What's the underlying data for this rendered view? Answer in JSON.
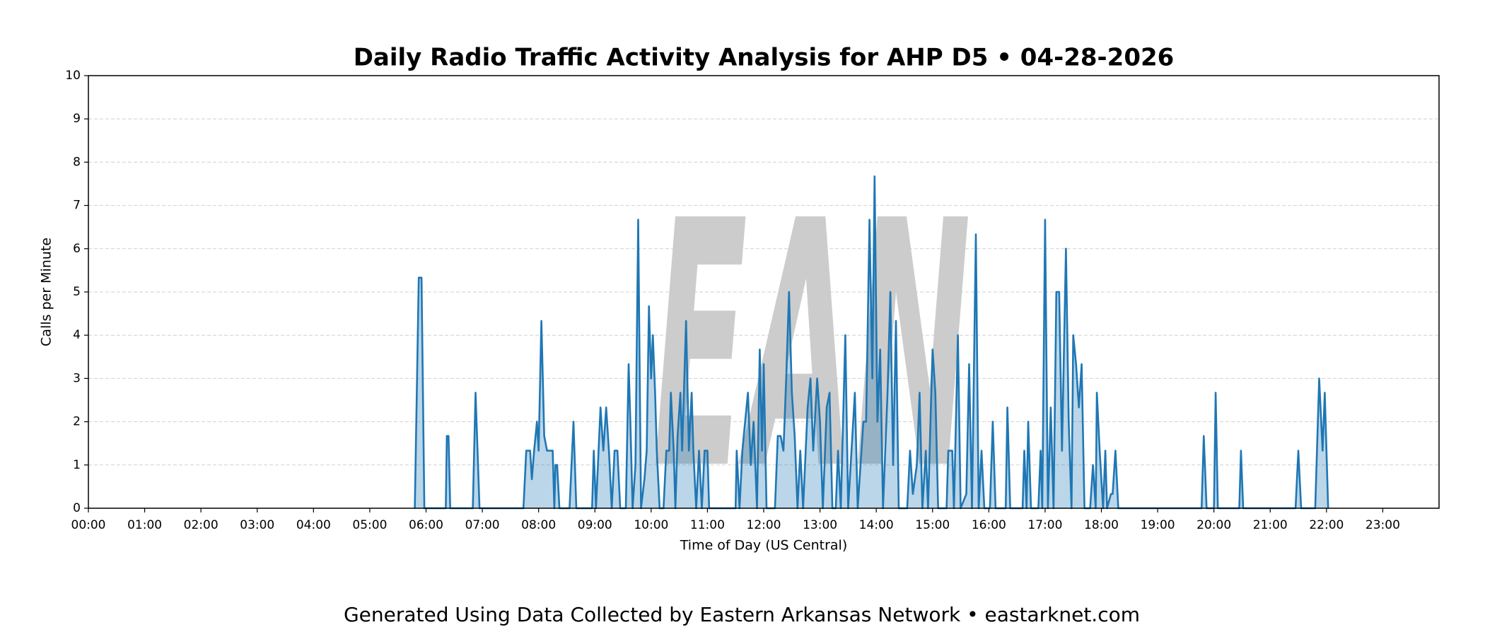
{
  "chart_data": {
    "type": "area",
    "title": "Daily Radio Traffic Activity Analysis for AHP D5 • 04-28-2026",
    "xlabel": "Time of Day (US Central)",
    "ylabel": "Calls per Minute",
    "watermark": "EAN",
    "footer": "Generated Using Data Collected by Eastern Arkansas Network • eastarknet.com",
    "color": "#1f77b4",
    "grid": true,
    "xlim": [
      0,
      24
    ],
    "ylim": [
      0,
      10
    ],
    "yticks": [
      0,
      1,
      2,
      3,
      4,
      5,
      6,
      7,
      8,
      9,
      10
    ],
    "xticks": [
      {
        "value": 0,
        "label": "00:00"
      },
      {
        "value": 1,
        "label": "01:00"
      },
      {
        "value": 2,
        "label": "02:00"
      },
      {
        "value": 3,
        "label": "03:00"
      },
      {
        "value": 4,
        "label": "04:00"
      },
      {
        "value": 5,
        "label": "05:00"
      },
      {
        "value": 6,
        "label": "06:00"
      },
      {
        "value": 7,
        "label": "07:00"
      },
      {
        "value": 8,
        "label": "08:00"
      },
      {
        "value": 9,
        "label": "09:00"
      },
      {
        "value": 10,
        "label": "10:00"
      },
      {
        "value": 11,
        "label": "11:00"
      },
      {
        "value": 12,
        "label": "12:00"
      },
      {
        "value": 13,
        "label": "13:00"
      },
      {
        "value": 14,
        "label": "14:00"
      },
      {
        "value": 15,
        "label": "15:00"
      },
      {
        "value": 16,
        "label": "16:00"
      },
      {
        "value": 17,
        "label": "17:00"
      },
      {
        "value": 18,
        "label": "18:00"
      },
      {
        "value": 19,
        "label": "19:00"
      },
      {
        "value": 20,
        "label": "20:00"
      },
      {
        "value": 21,
        "label": "21:00"
      },
      {
        "value": 22,
        "label": "22:00"
      },
      {
        "value": 23,
        "label": "23:00"
      }
    ],
    "x": [
      5.8,
      5.87,
      5.92,
      5.97,
      6.35,
      6.37,
      6.4,
      6.43,
      6.83,
      6.88,
      6.95,
      7.73,
      7.78,
      7.85,
      7.88,
      7.92,
      7.97,
      8.0,
      8.05,
      8.1,
      8.15,
      8.25,
      8.28,
      8.3,
      8.33,
      8.37,
      8.55,
      8.62,
      8.67,
      8.95,
      8.98,
      9.02,
      9.1,
      9.15,
      9.2,
      9.25,
      9.3,
      9.35,
      9.4,
      9.45,
      9.55,
      9.6,
      9.63,
      9.67,
      9.72,
      9.77,
      9.82,
      9.88,
      9.92,
      9.96,
      10.0,
      10.03,
      10.07,
      10.1,
      10.15,
      10.22,
      10.27,
      10.32,
      10.35,
      10.4,
      10.43,
      10.47,
      10.52,
      10.55,
      10.62,
      10.67,
      10.72,
      10.75,
      10.8,
      10.85,
      10.9,
      10.95,
      11.0,
      11.03,
      11.5,
      11.52,
      11.57,
      11.62,
      11.67,
      11.72,
      11.77,
      11.82,
      11.88,
      11.93,
      11.97,
      12.0,
      12.05,
      12.2,
      12.25,
      12.3,
      12.35,
      12.4,
      12.45,
      12.5,
      12.55,
      12.6,
      12.65,
      12.7,
      12.78,
      12.83,
      12.88,
      12.95,
      13.0,
      13.05,
      13.12,
      13.17,
      13.22,
      13.28,
      13.32,
      13.37,
      13.45,
      13.5,
      13.62,
      13.67,
      13.77,
      13.82,
      13.88,
      13.93,
      13.97,
      14.02,
      14.07,
      14.12,
      14.2,
      14.25,
      14.3,
      14.35,
      14.4,
      14.55,
      14.6,
      14.65,
      14.72,
      14.77,
      14.82,
      14.88,
      14.92,
      14.97,
      15.0,
      15.05,
      15.1,
      15.25,
      15.28,
      15.35,
      15.38,
      15.45,
      15.5,
      15.6,
      15.65,
      15.7,
      15.77,
      15.82,
      15.87,
      15.92,
      16.02,
      16.07,
      16.12,
      16.3,
      16.33,
      16.38,
      16.6,
      16.63,
      16.67,
      16.7,
      16.75,
      16.88,
      16.92,
      16.95,
      17.0,
      17.05,
      17.1,
      17.15,
      17.2,
      17.25,
      17.3,
      17.37,
      17.42,
      17.47,
      17.5,
      17.55,
      17.6,
      17.65,
      17.7,
      17.8,
      17.85,
      17.9,
      17.92,
      17.97,
      18.03,
      18.07,
      18.1,
      18.17,
      18.2,
      18.25,
      18.3,
      19.78,
      19.82,
      19.87,
      20.0,
      20.03,
      20.07,
      20.45,
      20.48,
      20.52,
      21.45,
      21.5,
      21.55,
      21.8,
      21.87,
      21.93,
      21.97,
      22.03
    ],
    "values": [
      0,
      5.33,
      5.33,
      0,
      0,
      1.67,
      1.67,
      0,
      0,
      2.67,
      0,
      0,
      1.33,
      1.33,
      0.67,
      1.33,
      2,
      1.33,
      4.33,
      1.67,
      1.33,
      1.33,
      0,
      1,
      1,
      0,
      0,
      2,
      0,
      0,
      1.33,
      0,
      2.33,
      1.33,
      2.33,
      1.33,
      0,
      1.33,
      1.33,
      0,
      0,
      3.33,
      2,
      0,
      1,
      6.67,
      0,
      0.67,
      1.33,
      4.67,
      3,
      4,
      2.67,
      1.33,
      0,
      0,
      1.33,
      1.33,
      2.67,
      1.33,
      0,
      1.67,
      2.67,
      1.33,
      4.33,
      1.33,
      2.67,
      1.33,
      0,
      1.33,
      0,
      1.33,
      1.33,
      0,
      0,
      1.33,
      0,
      1.33,
      2,
      2.67,
      1,
      2,
      0,
      3.67,
      1.33,
      3.33,
      0,
      0,
      1.67,
      1.67,
      1.33,
      3,
      5,
      2.67,
      1.67,
      0,
      1.33,
      0,
      2.33,
      3,
      1.33,
      3,
      2,
      0,
      2.33,
      2.67,
      0,
      0,
      1.33,
      0,
      4,
      0,
      2.67,
      0,
      2,
      2,
      6.67,
      3,
      7.67,
      2,
      3.67,
      0,
      2.67,
      5,
      1,
      4.33,
      0,
      0,
      1.33,
      0.33,
      1,
      2.67,
      0,
      1.33,
      0,
      2.33,
      3.67,
      2.67,
      0,
      0,
      1.33,
      1.33,
      0,
      4,
      0,
      0.33,
      3.33,
      0,
      6.33,
      0,
      1.33,
      0,
      0,
      2,
      0,
      0,
      2.33,
      0,
      0,
      1.33,
      0,
      2,
      0,
      0,
      1.33,
      0,
      6.67,
      0,
      2.33,
      0,
      5,
      5,
      1.33,
      6,
      2,
      0,
      4,
      3.33,
      2.33,
      3.33,
      0,
      0,
      1,
      0,
      2.67,
      1.33,
      0,
      1.33,
      0,
      0.33,
      0.33,
      1.33,
      0,
      0,
      1.67,
      0,
      0,
      2.67,
      0,
      0,
      1.33,
      0,
      0,
      1.33,
      0,
      0,
      3,
      1.33,
      2.67,
      0
    ]
  }
}
